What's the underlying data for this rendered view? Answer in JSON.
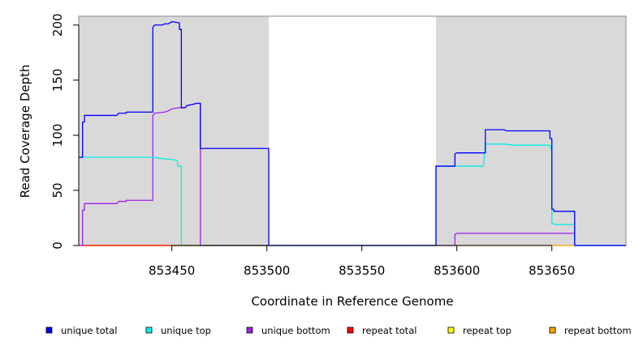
{
  "chart_data": {
    "type": "line",
    "title": "",
    "xlabel": "Coordinate in Reference Genome",
    "ylabel": "Read Coverage Depth",
    "xlim": [
      853401,
      853689
    ],
    "ylim": [
      0,
      208
    ],
    "xticks": [
      853450,
      853500,
      853550,
      853600,
      853650
    ],
    "yticks": [
      0,
      50,
      100,
      150,
      200
    ],
    "grid": false,
    "legend_position": "bottom",
    "shaded_regions": [
      [
        853401,
        853501
      ],
      [
        853589,
        853689
      ]
    ],
    "shade_color": "#d9d9d9",
    "series": [
      {
        "name": "unique total",
        "color": "#0000ff",
        "points": [
          [
            853401,
            80
          ],
          [
            853403,
            80
          ],
          [
            853403,
            112
          ],
          [
            853404,
            112
          ],
          [
            853404,
            118
          ],
          [
            853421,
            118
          ],
          [
            853422,
            120
          ],
          [
            853426,
            120
          ],
          [
            853426,
            121
          ],
          [
            853440,
            121
          ],
          [
            853440,
            198
          ],
          [
            853441,
            200
          ],
          [
            853445,
            200
          ],
          [
            853446,
            201
          ],
          [
            853448,
            201
          ],
          [
            853450,
            203
          ],
          [
            853454,
            202
          ],
          [
            853454,
            196
          ],
          [
            853455,
            196
          ],
          [
            853455,
            125
          ],
          [
            853457,
            125
          ],
          [
            853458,
            127
          ],
          [
            853461,
            128
          ],
          [
            853463,
            129
          ],
          [
            853465,
            129
          ],
          [
            853465,
            88
          ],
          [
            853501,
            88
          ],
          [
            853501,
            0
          ],
          [
            853589,
            0
          ],
          [
            853589,
            72
          ],
          [
            853599,
            72
          ],
          [
            853599,
            83
          ],
          [
            853600,
            84
          ],
          [
            853615,
            84
          ],
          [
            853615,
            105
          ],
          [
            853625,
            105
          ],
          [
            853626,
            104
          ],
          [
            853649,
            104
          ],
          [
            853649,
            97
          ],
          [
            853650,
            97
          ],
          [
            853650,
            33
          ],
          [
            853651,
            33
          ],
          [
            853651,
            31
          ],
          [
            853662,
            31
          ],
          [
            853662,
            0
          ],
          [
            853689,
            0
          ]
        ]
      },
      {
        "name": "unique top",
        "color": "#00eeee",
        "points": [
          [
            853401,
            80
          ],
          [
            853439,
            80
          ],
          [
            853440,
            80
          ],
          [
            853444,
            79
          ],
          [
            853450,
            78
          ],
          [
            853453,
            77
          ],
          [
            853453,
            72
          ],
          [
            853455,
            72
          ],
          [
            853455,
            0
          ],
          [
            853501,
            0
          ],
          [
            853589,
            0
          ],
          [
            853589,
            72
          ],
          [
            853614,
            72
          ],
          [
            853615,
            92
          ],
          [
            853625,
            92
          ],
          [
            853630,
            91
          ],
          [
            853649,
            91
          ],
          [
            853650,
            85
          ],
          [
            853650,
            20
          ],
          [
            853651,
            20
          ],
          [
            853651,
            19
          ],
          [
            853662,
            19
          ],
          [
            853662,
            0
          ],
          [
            853689,
            0
          ]
        ]
      },
      {
        "name": "unique bottom",
        "color": "#a020f0",
        "points": [
          [
            853401,
            0
          ],
          [
            853403,
            0
          ],
          [
            853403,
            32
          ],
          [
            853404,
            32
          ],
          [
            853404,
            38
          ],
          [
            853421,
            38
          ],
          [
            853422,
            40
          ],
          [
            853426,
            40
          ],
          [
            853426,
            41
          ],
          [
            853440,
            41
          ],
          [
            853440,
            118
          ],
          [
            853441,
            120
          ],
          [
            853446,
            121
          ],
          [
            853448,
            122
          ],
          [
            853450,
            124
          ],
          [
            853454,
            125
          ],
          [
            853457,
            125
          ],
          [
            853458,
            127
          ],
          [
            853461,
            128
          ],
          [
            853463,
            129
          ],
          [
            853465,
            129
          ],
          [
            853465,
            0
          ],
          [
            853599,
            0
          ],
          [
            853599,
            10
          ],
          [
            853600,
            11
          ],
          [
            853662,
            11
          ],
          [
            853662,
            0
          ],
          [
            853689,
            0
          ]
        ]
      },
      {
        "name": "repeat total",
        "color": "#ff0000",
        "points": [
          [
            853401,
            0
          ],
          [
            853501,
            0
          ]
        ]
      },
      {
        "name": "repeat top",
        "color": "#ffff00",
        "points": [
          [
            853401,
            0
          ],
          [
            853501,
            0
          ]
        ]
      },
      {
        "name": "repeat bottom",
        "color": "#ffa500",
        "points": [
          [
            853401,
            0
          ],
          [
            853501,
            0
          ],
          [
            853589,
            0
          ],
          [
            853662,
            0
          ]
        ]
      }
    ]
  },
  "legend": {
    "items": [
      {
        "label": "unique total",
        "color": "#0000ff"
      },
      {
        "label": "unique top",
        "color": "#00eeee"
      },
      {
        "label": "unique bottom",
        "color": "#a020f0"
      },
      {
        "label": "repeat total",
        "color": "#ff0000"
      },
      {
        "label": "repeat top",
        "color": "#ffff00"
      },
      {
        "label": "repeat bottom",
        "color": "#ffa500"
      }
    ]
  }
}
